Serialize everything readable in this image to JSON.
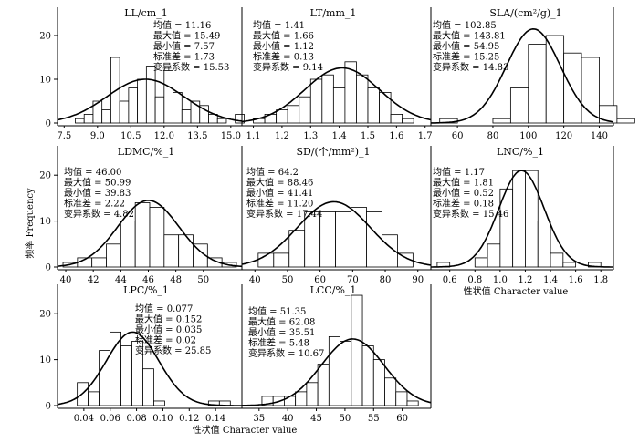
{
  "figure": {
    "y_axis_label": "频率 Frequency",
    "x_axis_label_row2": "性状值 Character value",
    "x_axis_label_row3": "性状值 Character value",
    "y_ticks": [
      "0",
      "10",
      "20"
    ],
    "stat_labels": [
      "均值",
      "最大值",
      "最小值",
      "标准差",
      "变异系数"
    ]
  },
  "chart_data": [
    {
      "type": "bar",
      "title": "LL/cm_1",
      "stats": {
        "mean": "11.16",
        "max": "15.49",
        "min": "7.57",
        "sd": "1.73",
        "cv": "15.53"
      },
      "xlim": [
        7.2,
        15.5
      ],
      "ylim": [
        0,
        26
      ],
      "xticks": [
        7.5,
        9.0,
        10.5,
        12.0,
        13.5,
        15.0
      ],
      "xtick_labels": [
        "7.5",
        "9.0",
        "10.5",
        "12.0",
        "13.5",
        "15.0"
      ],
      "bin_start": 7.6,
      "bin_width": 0.4,
      "values": [
        0,
        1,
        2,
        5,
        3,
        15,
        5,
        8,
        10,
        13,
        6,
        12,
        7,
        3,
        5,
        4,
        2,
        1,
        0,
        2
      ],
      "fit": {
        "mean": 11.16,
        "sd": 1.73,
        "peak": 10
      }
    },
    {
      "type": "bar",
      "title": "LT/mm_1",
      "stats": {
        "mean": "1.41",
        "max": "1.66",
        "min": "1.12",
        "sd": "0.13",
        "cv": "9.14"
      },
      "xlim": [
        1.06,
        1.72
      ],
      "ylim": [
        0,
        26
      ],
      "xticks": [
        1.1,
        1.2,
        1.3,
        1.4,
        1.5,
        1.6,
        1.7
      ],
      "xtick_labels": [
        "1.1",
        "1.2",
        "1.3",
        "1.4",
        "1.5",
        "1.6",
        "1.7"
      ],
      "bin_start": 1.1,
      "bin_width": 0.04,
      "values": [
        1,
        2,
        3,
        4,
        6,
        10,
        11,
        8,
        14,
        11,
        8,
        7,
        2,
        1
      ],
      "fit": {
        "mean": 1.41,
        "sd": 0.13,
        "peak": 12.6
      }
    },
    {
      "type": "bar",
      "title": "SLA/(cm²/g)_1",
      "stats": {
        "mean": "102.85",
        "max": "143.81",
        "min": "54.95",
        "sd": "15.25",
        "cv": "14.83"
      },
      "xlim": [
        45,
        148
      ],
      "ylim": [
        0,
        26
      ],
      "xticks": [
        60,
        80,
        100,
        120,
        140
      ],
      "xtick_labels": [
        "60",
        "80",
        "100",
        "120",
        "140"
      ],
      "bin_start": 50,
      "bin_width": 10,
      "values": [
        1,
        0,
        0,
        1,
        8,
        18,
        20,
        16,
        15,
        4,
        1
      ],
      "fit": {
        "mean": 102.85,
        "sd": 15.25,
        "peak": 21.5
      }
    },
    {
      "type": "bar",
      "title": "LDMC/%_1",
      "stats": {
        "mean": "46.00",
        "max": "50.99",
        "min": "39.83",
        "sd": "2.22",
        "cv": "4.82"
      },
      "xlim": [
        39.4,
        52.8
      ],
      "ylim": [
        0,
        26
      ],
      "xticks": [
        40,
        42,
        44,
        46,
        48,
        50
      ],
      "xtick_labels": [
        "40",
        "42",
        "44",
        "46",
        "48",
        "50"
      ],
      "bin_start": 39.8,
      "bin_width": 1.05,
      "values": [
        1,
        2,
        2,
        5,
        10,
        14,
        13,
        7,
        7,
        5,
        2,
        1
      ],
      "fit": {
        "mean": 46.0,
        "sd": 2.22,
        "peak": 14.5
      }
    },
    {
      "type": "bar",
      "title": "SD/(个/mm²)_1",
      "stats": {
        "mean": "64.2",
        "max": "88.46",
        "min": "41.41",
        "sd": "11.20",
        "cv": "17.44"
      },
      "xlim": [
        36,
        94
      ],
      "ylim": [
        0,
        26
      ],
      "xticks": [
        40,
        50,
        60,
        70,
        80,
        90
      ],
      "xtick_labels": [
        "40",
        "50",
        "60",
        "70",
        "80",
        "90"
      ],
      "bin_start": 41,
      "bin_width": 4.75,
      "values": [
        3,
        3,
        8,
        12,
        12,
        12,
        13,
        12,
        7,
        3
      ],
      "fit": {
        "mean": 64.2,
        "sd": 11.2,
        "peak": 14.2
      }
    },
    {
      "type": "bar",
      "title": "LNC/%_1",
      "stats": {
        "mean": "1.17",
        "max": "1.81",
        "min": "0.52",
        "sd": "0.18",
        "cv": "15.46"
      },
      "xlim": [
        0.45,
        1.9
      ],
      "ylim": [
        0,
        26
      ],
      "xticks": [
        0.6,
        0.8,
        1.0,
        1.2,
        1.4,
        1.6,
        1.8
      ],
      "xtick_labels": [
        "0.6",
        "0.8",
        "1.0",
        "1.2",
        "1.4",
        "1.6",
        "1.8"
      ],
      "bin_start": 0.5,
      "bin_width": 0.1,
      "values": [
        1,
        0,
        0,
        2,
        5,
        17,
        21,
        21,
        10,
        3,
        1,
        0,
        1
      ],
      "fit": {
        "mean": 1.17,
        "sd": 0.18,
        "peak": 21
      }
    },
    {
      "type": "bar",
      "title": "LPC/%_1",
      "stats": {
        "mean": "0.077",
        "max": "0.152",
        "min": "0.035",
        "sd": "0.02",
        "cv": "25.85"
      },
      "xlim": [
        0.02,
        0.16
      ],
      "ylim": [
        0,
        26
      ],
      "xticks": [
        0.04,
        0.06,
        0.08,
        0.1,
        0.12,
        0.14
      ],
      "xtick_labels": [
        "0.04",
        "0.06",
        "0.08",
        "0.10",
        "0.12",
        "0.14"
      ],
      "bin_start": 0.035,
      "bin_width": 0.0083,
      "values": [
        5,
        3,
        12,
        16,
        13,
        14,
        8,
        1,
        0,
        0,
        0,
        0,
        1,
        1
      ],
      "fit": {
        "mean": 0.077,
        "sd": 0.02,
        "peak": 16
      }
    },
    {
      "type": "bar",
      "title": "LCC/%_1",
      "stats": {
        "mean": "51.35",
        "max": "62.08",
        "min": "35.51",
        "sd": "5.48",
        "cv": "10.67"
      },
      "xlim": [
        32,
        65
      ],
      "ylim": [
        0,
        26
      ],
      "xticks": [
        35,
        40,
        45,
        50,
        55,
        60
      ],
      "xtick_labels": [
        "35",
        "40",
        "45",
        "50",
        "55",
        "60"
      ],
      "bin_start": 35.5,
      "bin_width": 1.95,
      "values": [
        2,
        2,
        2,
        3,
        5,
        9,
        15,
        14,
        24,
        13,
        10,
        6,
        3,
        1
      ],
      "fit": {
        "mean": 51.35,
        "sd": 5.48,
        "peak": 14.5
      }
    }
  ]
}
